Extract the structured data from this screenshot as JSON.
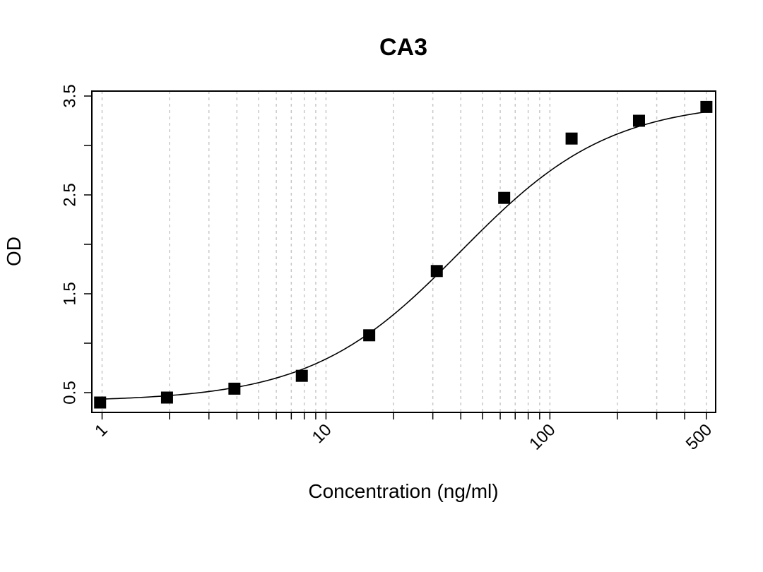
{
  "chart_data": {
    "type": "scatter",
    "title": "CA3",
    "xlabel": "Concentration (ng/ml)",
    "ylabel": "OD",
    "x_scale": "log",
    "xlim": [
      0.9,
      550
    ],
    "ylim": [
      0.3,
      3.55
    ],
    "x_tick_labels": [
      {
        "value": 1,
        "label": "1"
      },
      {
        "value": 10,
        "label": "10"
      },
      {
        "value": 100,
        "label": "100"
      },
      {
        "value": 500,
        "label": "500"
      }
    ],
    "x_minor_ticks": [
      2,
      3,
      4,
      5,
      6,
      7,
      8,
      9,
      20,
      30,
      40,
      50,
      60,
      70,
      80,
      90,
      200,
      300,
      400
    ],
    "y_tick_labels": [
      {
        "value": 0.5,
        "label": "0.5"
      },
      {
        "value": 1.5,
        "label": "1.5"
      },
      {
        "value": 2.5,
        "label": "2.5"
      },
      {
        "value": 3.5,
        "label": "3.5"
      }
    ],
    "y_minor_ticks": [
      1.0,
      2.0,
      3.0
    ],
    "vertical_grid": true,
    "series": [
      {
        "x": [
          0.98,
          1.95,
          3.9,
          7.8,
          15.6,
          31.25,
          62.5,
          125,
          250,
          500
        ],
        "y": [
          0.4,
          0.45,
          0.54,
          0.67,
          1.08,
          1.73,
          2.47,
          3.07,
          3.25,
          3.39
        ]
      }
    ],
    "fit": {
      "type": "4PL",
      "bottom": 0.41,
      "top": 3.45,
      "ec50": 40,
      "hill": 1.3
    },
    "colors": {
      "marker": "#000000",
      "grid": "#c8c8c8",
      "line": "#000000"
    }
  }
}
